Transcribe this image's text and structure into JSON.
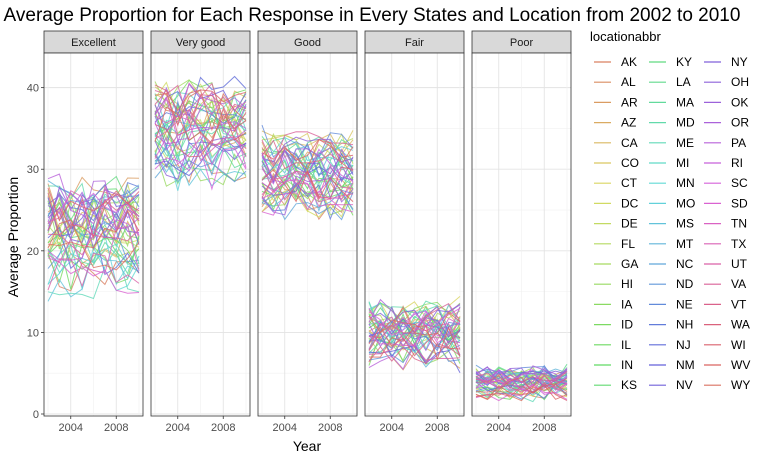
{
  "chart_data": {
    "type": "line",
    "title": "Average Proportion for Each Response in Every States and Location from 2002 to 2010",
    "xlabel": "Year",
    "ylabel": "Average Proportion",
    "facets": [
      "Excellent",
      "Very good",
      "Good",
      "Fair",
      "Poor"
    ],
    "xlim": [
      2002,
      2010
    ],
    "ylim": [
      0,
      44
    ],
    "x_ticks": [
      2004,
      2008
    ],
    "y_ticks": [
      0,
      10,
      20,
      30,
      40
    ],
    "x": [
      2002,
      2003,
      2004,
      2005,
      2006,
      2007,
      2008,
      2009,
      2010
    ],
    "facet_ranges": {
      "Excellent": [
        17,
        27
      ],
      "Very good": [
        30,
        39
      ],
      "Good": [
        26,
        33
      ],
      "Fair": [
        7,
        13
      ],
      "Poor": [
        2.5,
        5
      ]
    },
    "legend": {
      "title": "locationabbr",
      "position": "right",
      "columns": [
        [
          "AK",
          "AL",
          "AR",
          "AZ",
          "CA",
          "CO",
          "CT",
          "DC",
          "DE",
          "FL",
          "GA",
          "HI",
          "IA",
          "ID",
          "IL",
          "IN",
          "KS"
        ],
        [
          "KY",
          "LA",
          "MA",
          "MD",
          "ME",
          "MI",
          "MN",
          "MO",
          "MS",
          "MT",
          "NC",
          "ND",
          "NE",
          "NH",
          "NJ",
          "NM",
          "NV"
        ],
        [
          "NY",
          "OH",
          "OK",
          "OR",
          "PA",
          "RI",
          "SC",
          "SD",
          "TN",
          "TX",
          "UT",
          "VA",
          "VT",
          "WA",
          "WI",
          "WV",
          "WY"
        ]
      ]
    },
    "grid": true
  }
}
